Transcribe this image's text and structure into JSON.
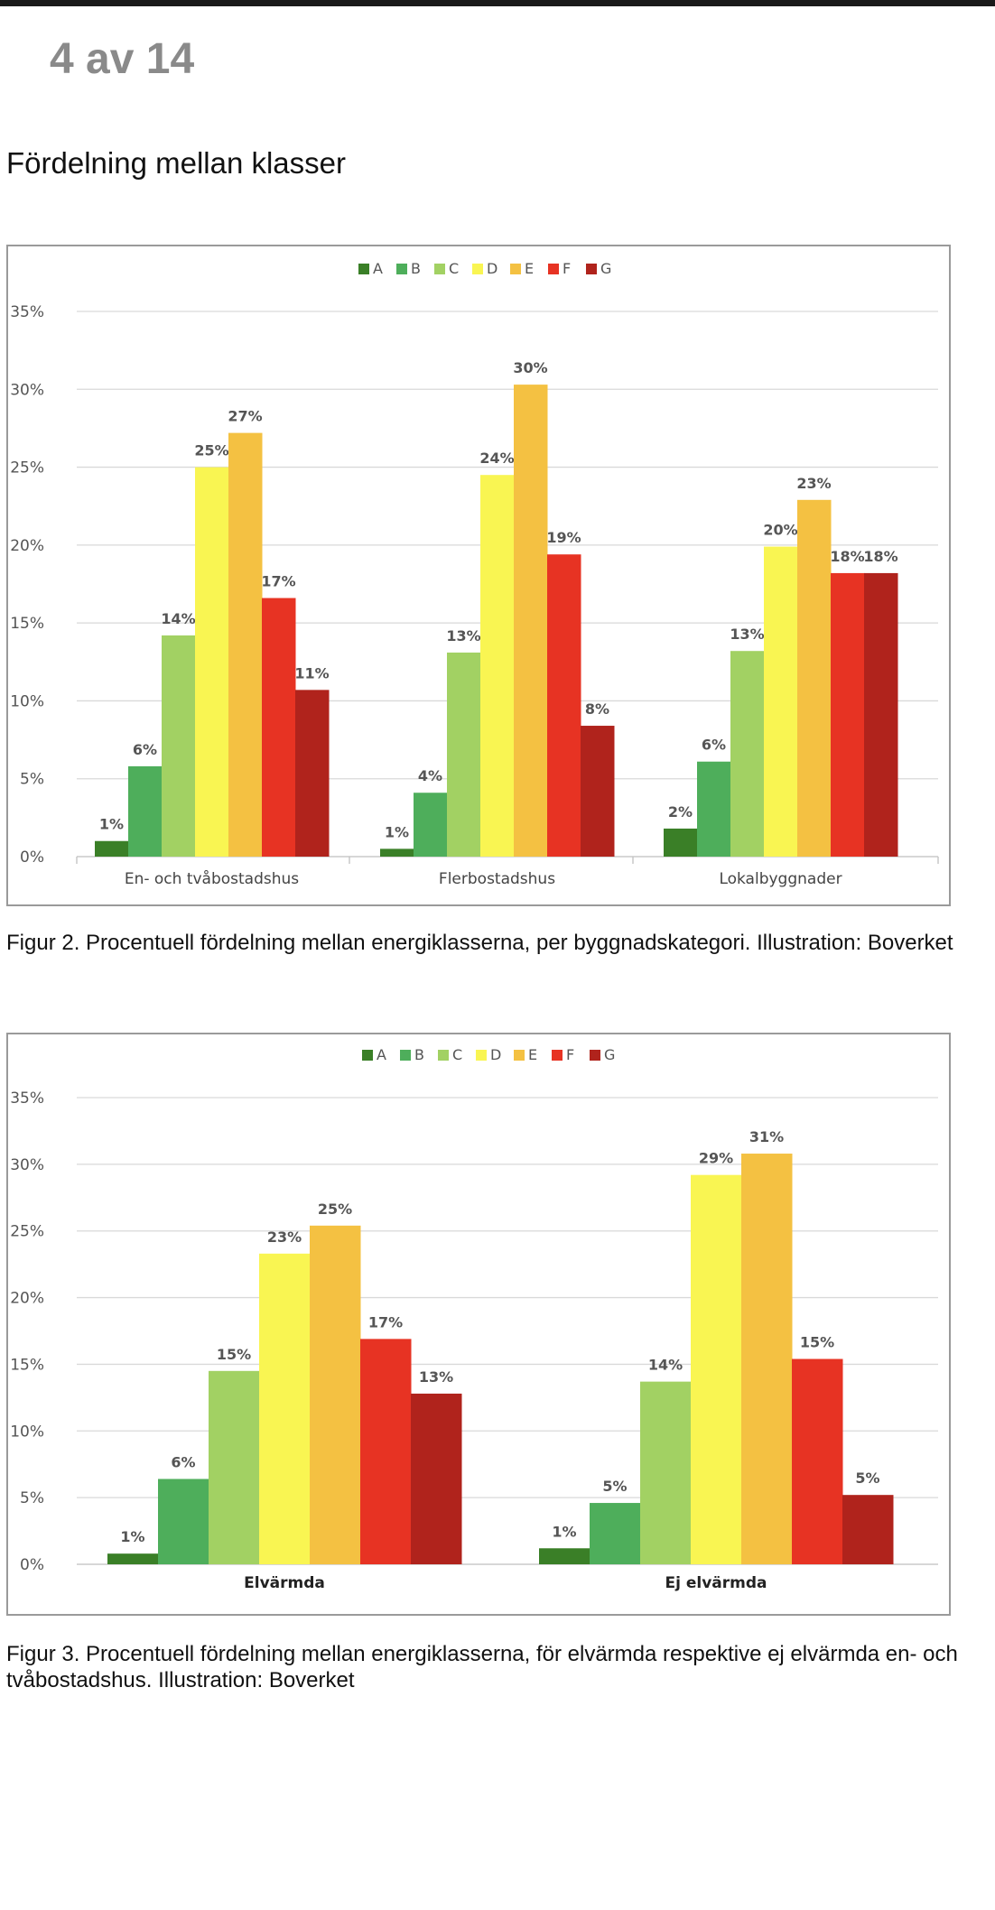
{
  "page": {
    "indicator": "4 av 14"
  },
  "heading": "Fördelning mellan klasser",
  "captions": {
    "figure2": "Figur 2. Procentuell fördelning mellan energiklasserna, per byggnadskategori. Illustration: Boverket",
    "figure3": "Figur 3. Procentuell fördelning mellan energiklasserna, för elvärmda respektive ej elvärmda en- och tvåbostadshus. Illustration: Boverket"
  },
  "colors": {
    "A": "#3a7f27",
    "B": "#4eae5b",
    "C": "#a2d163",
    "D": "#f9f552",
    "E": "#f4c142",
    "F": "#e73323",
    "G": "#b0231c",
    "grid": "#d9d9d9",
    "frame": "#9a9a9a"
  },
  "chart_data": [
    {
      "type": "bar",
      "title": "",
      "legend_position": "top-center",
      "classes": [
        "A",
        "B",
        "C",
        "D",
        "E",
        "F",
        "G"
      ],
      "categories": [
        "En- och tvåbostadshus",
        "Flerbostadshus",
        "Lokalbyggnader"
      ],
      "series": [
        {
          "name": "A",
          "values": [
            1,
            0.5,
            1.8
          ],
          "labels": [
            "1%",
            "1%",
            "2%"
          ]
        },
        {
          "name": "B",
          "values": [
            5.8,
            4.1,
            6.1
          ],
          "labels": [
            "6%",
            "4%",
            "6%"
          ]
        },
        {
          "name": "C",
          "values": [
            14.2,
            13.1,
            13.2
          ],
          "labels": [
            "14%",
            "13%",
            "13%"
          ]
        },
        {
          "name": "D",
          "values": [
            25,
            24.5,
            19.9
          ],
          "labels": [
            "25%",
            "24%",
            "20%"
          ]
        },
        {
          "name": "E",
          "values": [
            27.2,
            30.3,
            22.9
          ],
          "labels": [
            "27%",
            "30%",
            "23%"
          ]
        },
        {
          "name": "F",
          "values": [
            16.6,
            19.4,
            18.2
          ],
          "labels": [
            "17%",
            "19%",
            "18%"
          ]
        },
        {
          "name": "G",
          "values": [
            10.7,
            8.4,
            18.2
          ],
          "labels": [
            "11%",
            "8%",
            "18%"
          ]
        }
      ],
      "ylim": [
        0,
        35
      ],
      "yticks": [
        "0%",
        "5%",
        "10%",
        "15%",
        "20%",
        "25%",
        "30%",
        "35%"
      ],
      "category_label_bold": false
    },
    {
      "type": "bar",
      "title": "",
      "legend_position": "top-center",
      "classes": [
        "A",
        "B",
        "C",
        "D",
        "E",
        "F",
        "G"
      ],
      "categories": [
        "Elvärmda",
        "Ej elvärmda"
      ],
      "series": [
        {
          "name": "A",
          "values": [
            0.8,
            1.2
          ],
          "labels": [
            "1%",
            "1%"
          ]
        },
        {
          "name": "B",
          "values": [
            6.4,
            4.6
          ],
          "labels": [
            "6%",
            "5%"
          ]
        },
        {
          "name": "C",
          "values": [
            14.5,
            13.7
          ],
          "labels": [
            "15%",
            "14%"
          ]
        },
        {
          "name": "D",
          "values": [
            23.3,
            29.2
          ],
          "labels": [
            "23%",
            "29%"
          ]
        },
        {
          "name": "E",
          "values": [
            25.4,
            30.8
          ],
          "labels": [
            "25%",
            "31%"
          ]
        },
        {
          "name": "F",
          "values": [
            16.9,
            15.4
          ],
          "labels": [
            "17%",
            "15%"
          ]
        },
        {
          "name": "G",
          "values": [
            12.8,
            5.2
          ],
          "labels": [
            "13%",
            "5%"
          ]
        }
      ],
      "ylim": [
        0,
        35
      ],
      "yticks": [
        "0%",
        "5%",
        "10%",
        "15%",
        "20%",
        "25%",
        "30%",
        "35%"
      ],
      "category_label_bold": true
    }
  ]
}
